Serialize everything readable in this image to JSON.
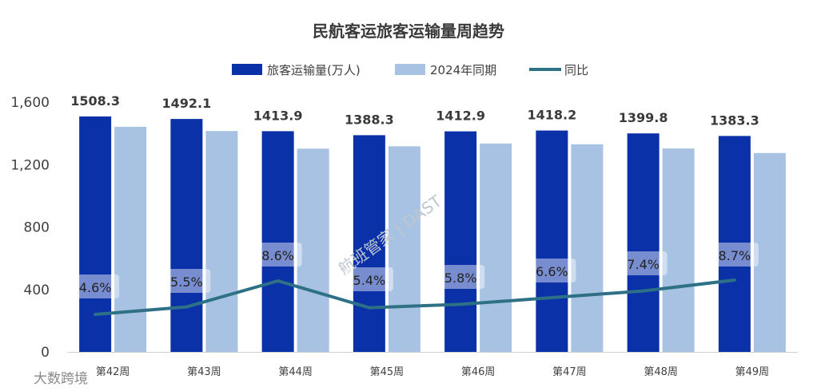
{
  "chart_data": {
    "type": "bar",
    "title": "民航客运旅客运输量周趋势",
    "categories": [
      "第42周",
      "第43周",
      "第44周",
      "第45周",
      "第46周",
      "第47周",
      "第48周",
      "第49周"
    ],
    "series": [
      {
        "name": "旅客运输量(万人)",
        "kind": "bar",
        "color": "#0a31a8",
        "values": [
          1508.3,
          1492.1,
          1413.9,
          1388.3,
          1412.9,
          1418.2,
          1399.8,
          1383.3
        ]
      },
      {
        "name": "2024年同期",
        "kind": "bar",
        "color": "#a7c2e3",
        "values": [
          1442,
          1415,
          1302,
          1317,
          1335,
          1330,
          1303,
          1274
        ]
      },
      {
        "name": "同比",
        "kind": "line",
        "color": "#2e7186",
        "values": [
          "4.6%",
          "5.5%",
          "8.6%",
          "5.4%",
          "5.8%",
          "6.6%",
          "7.4%",
          "8.7%"
        ]
      }
    ],
    "yticks": [
      "0",
      "400",
      "800",
      "1,200",
      "1,600"
    ],
    "ylim": [
      0,
      1600
    ],
    "legend": "top-center",
    "grid": false
  },
  "watermark": {
    "text": "航班管家 | DAST",
    "corner": "大数跨境"
  }
}
